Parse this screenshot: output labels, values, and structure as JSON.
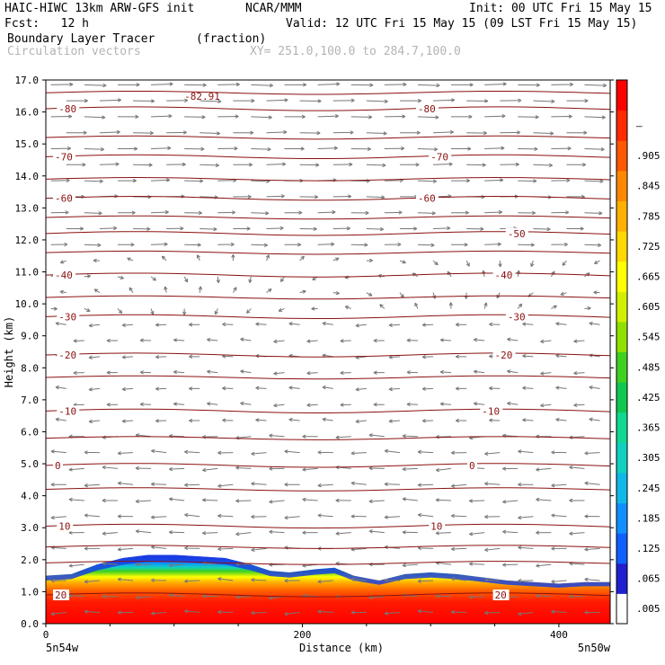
{
  "header": {
    "model_line": "HAIC-HIWC 13km ARW-GFS init",
    "org": "NCAR/MMM",
    "init": "Init: 00 UTC Fri 15 May 15",
    "fcst": "Fcst:   12 h",
    "valid": "Valid: 12 UTC Fri 15 May 15 (09 LST Fri 15 May 15)",
    "field": "Boundary Layer Tracer",
    "field_units": "(fraction)",
    "vector_label": "Circulation vectors",
    "xy_range": "XY= 251.0,100.0 to 284.7,100.0"
  },
  "chart_data": {
    "type": "heatmap",
    "title": "Boundary Layer Tracer",
    "xlabel": "Distance (km)",
    "ylabel": "Height (km)",
    "xlim": [
      0,
      440
    ],
    "ylim": [
      0,
      17
    ],
    "x_ticks": [
      "0",
      "200",
      "400"
    ],
    "y_ticks": [
      "0.0",
      "1.0",
      "2.0",
      "3.0",
      "4.0",
      "5.0",
      "6.0",
      "7.0",
      "8.0",
      "9.0",
      "10.0",
      "11.0",
      "12.0",
      "13.0",
      "14.0",
      "15.0",
      "16.0",
      "17.0"
    ],
    "x_endpoint_labels": [
      "5n54w",
      "5n50w"
    ],
    "colorbar_labels": [
      ".005",
      ".065",
      ".125",
      ".185",
      ".245",
      ".305",
      ".365",
      ".425",
      ".485",
      ".545",
      ".605",
      ".665",
      ".725",
      ".785",
      ".845",
      ".905",
      "–"
    ],
    "colorbar_colors": [
      "#ffffff",
      "#2020d0",
      "#1060ff",
      "#1090ff",
      "#10b8e8",
      "#10d0c0",
      "#10d890",
      "#10c850",
      "#40d020",
      "#90e000",
      "#d0f000",
      "#ffff00",
      "#ffd800",
      "#ffb000",
      "#ff8800",
      "#ff5800",
      "#ff2a00",
      "#ff0000"
    ],
    "temperature_contours": [
      {
        "label": "20",
        "height": 0.9,
        "label_x": [
          7,
          350
        ]
      },
      {
        "label": "10",
        "height": 3.05,
        "label_x": [
          10,
          300
        ]
      },
      {
        "label": "0",
        "height": 4.95,
        "label_x": [
          7,
          330
        ]
      },
      {
        "label": "-10",
        "height": 6.65,
        "label_x": [
          10,
          340
        ]
      },
      {
        "label": "-20",
        "height": 8.4,
        "label_x": [
          10,
          350
        ]
      },
      {
        "label": "-30",
        "height": 9.6,
        "label_x": [
          10,
          360
        ]
      },
      {
        "label": "-40",
        "height": 10.9,
        "label_x": [
          7,
          350
        ]
      },
      {
        "label": "-50",
        "height": 12.2,
        "label_x": [
          360
        ]
      },
      {
        "label": "-60",
        "height": 13.3,
        "label_x": [
          7,
          290
        ]
      },
      {
        "label": "-70",
        "height": 14.6,
        "label_x": [
          7,
          300
        ]
      },
      {
        "label": "-80",
        "height": 16.1,
        "label_x": [
          10,
          290
        ]
      }
    ],
    "extra_contour_heights": [
      1.9,
      2.4,
      4.2,
      5.8,
      7.7,
      10.2,
      11.6,
      12.7,
      13.9,
      15.2,
      16.6
    ],
    "annotation": {
      "text": "-82.91",
      "x": 108,
      "height": 16.55
    },
    "tracer_top": {
      "x": [
        0,
        20,
        40,
        60,
        80,
        100,
        120,
        140,
        160,
        175,
        190,
        210,
        225,
        240,
        260,
        280,
        300,
        320,
        340,
        360,
        380,
        400,
        420,
        440
      ],
      "height": [
        1.5,
        1.55,
        1.85,
        2.05,
        2.15,
        2.15,
        2.1,
        2.05,
        1.85,
        1.65,
        1.6,
        1.7,
        1.75,
        1.5,
        1.35,
        1.55,
        1.6,
        1.55,
        1.45,
        1.35,
        1.3,
        1.25,
        1.3,
        1.3
      ]
    },
    "wind_direction_by_layer": [
      {
        "from_km": 0,
        "to_km": 6,
        "direction": "westward"
      },
      {
        "from_km": 6,
        "to_km": 9.5,
        "direction": "westward-weak"
      },
      {
        "from_km": 9.5,
        "to_km": 11.5,
        "direction": "variable-weak"
      },
      {
        "from_km": 11.5,
        "to_km": 17,
        "direction": "eastward-strong"
      }
    ]
  }
}
